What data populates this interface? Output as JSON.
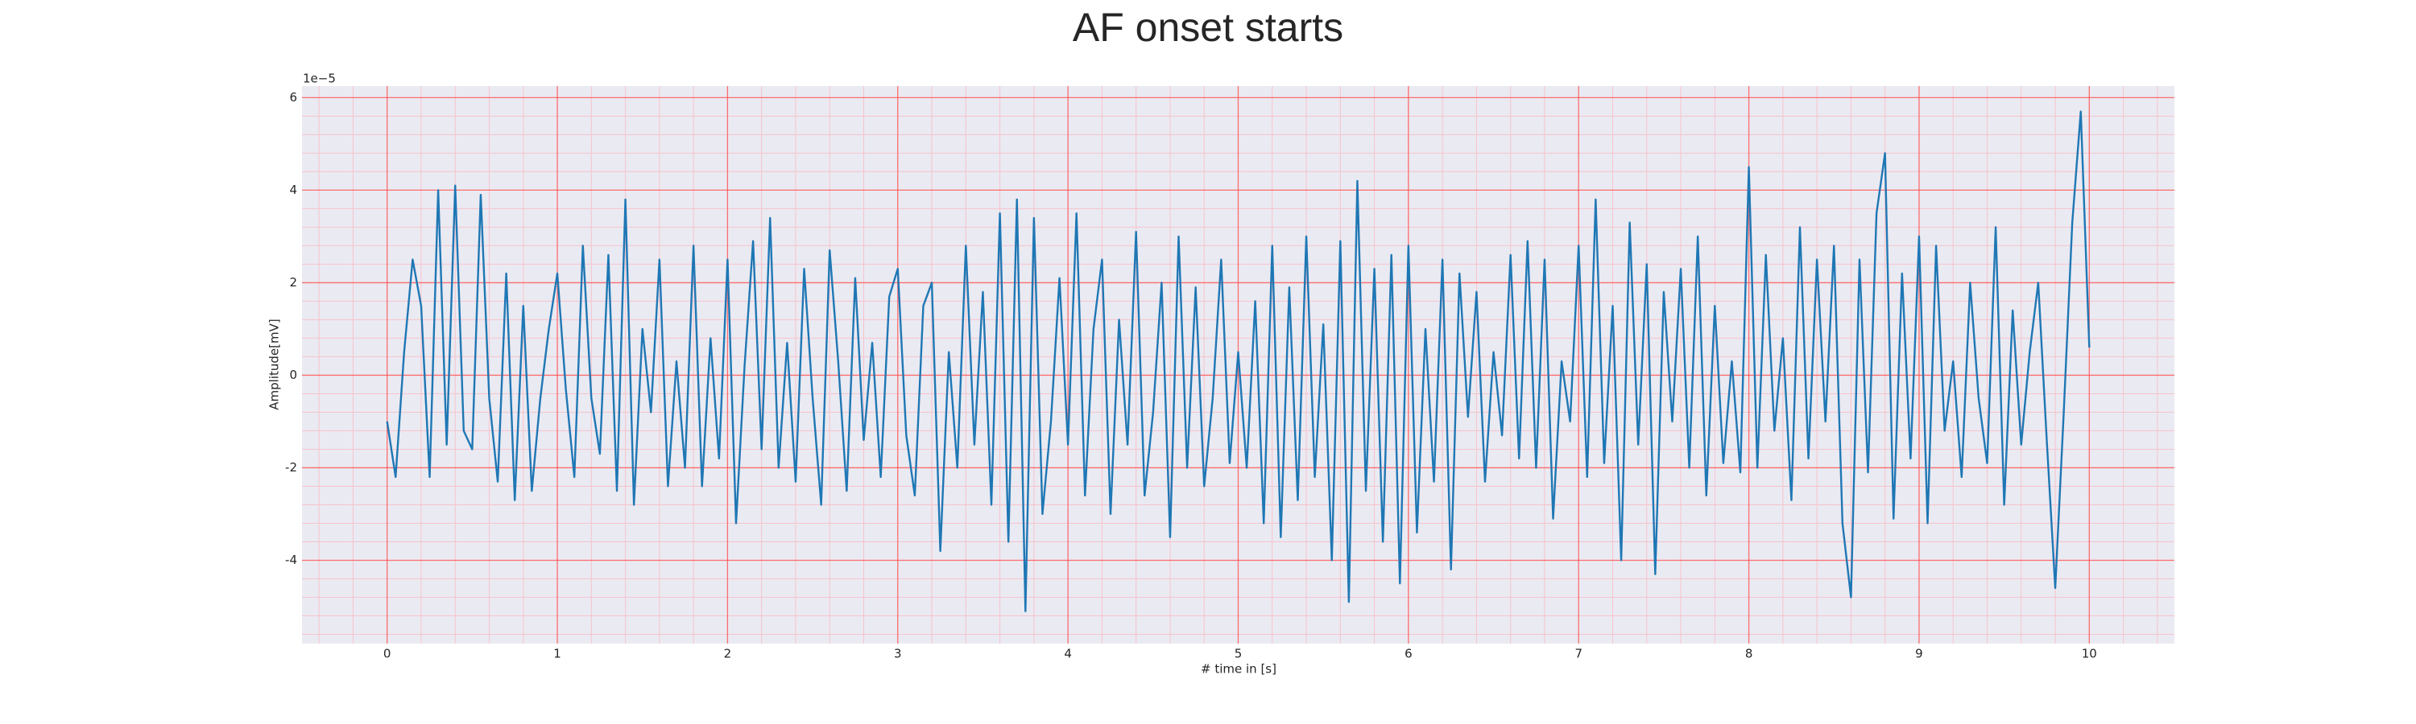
{
  "chart_data": {
    "type": "line",
    "title": "AF onset starts",
    "xlabel": "# time in [s]",
    "ylabel": "Amplitude[mV]",
    "y_offset_label": "1e−5",
    "xlim": [
      -0.5,
      10.5
    ],
    "ylim": [
      -5.8,
      6.25
    ],
    "xticks": [
      0,
      1,
      2,
      3,
      4,
      5,
      6,
      7,
      8,
      9,
      10
    ],
    "yticks": [
      -4,
      -2,
      0,
      2,
      4,
      6
    ],
    "xminorticks": [
      -0.4,
      -0.2,
      0.2,
      0.4,
      0.6,
      0.8,
      1.2,
      1.4,
      1.6,
      1.8,
      2.2,
      2.4,
      2.6,
      2.8,
      3.2,
      3.4,
      3.6,
      3.8,
      4.2,
      4.4,
      4.6,
      4.8,
      5.2,
      5.4,
      5.6,
      5.8,
      6.2,
      6.4,
      6.6,
      6.8,
      7.2,
      7.4,
      7.6,
      7.8,
      8.2,
      8.4,
      8.6,
      8.8,
      9.2,
      9.4,
      9.6,
      9.8,
      10.2,
      10.4
    ],
    "yminorticks": [
      -5.6,
      -5.2,
      -4.8,
      -4.4,
      -3.6,
      -3.2,
      -2.8,
      -2.4,
      -1.6,
      -1.2,
      -0.8,
      -0.4,
      0.4,
      0.8,
      1.2,
      1.6,
      2.4,
      2.8,
      3.2,
      3.6,
      4.4,
      4.8,
      5.2,
      5.6
    ],
    "grid": true,
    "grid_color": "#ff4d4d",
    "minor_grid_color": "#f7c3cc",
    "background": "#eaeaf2",
    "series": [
      {
        "color": "#1f77b4",
        "x": [
          0,
          0.05,
          0.1,
          0.15,
          0.2,
          0.25,
          0.3,
          0.35,
          0.4,
          0.45,
          0.5,
          0.55,
          0.6,
          0.65,
          0.7,
          0.75,
          0.8,
          0.85,
          0.9,
          0.95,
          1,
          1.05,
          1.1,
          1.15,
          1.2,
          1.25,
          1.3,
          1.35,
          1.4,
          1.45,
          1.5,
          1.55,
          1.6,
          1.65,
          1.7,
          1.75,
          1.8,
          1.85,
          1.9,
          1.95,
          2,
          2.05,
          2.1,
          2.15,
          2.2,
          2.25,
          2.3,
          2.35,
          2.4,
          2.45,
          2.5,
          2.55,
          2.6,
          2.65,
          2.7,
          2.75,
          2.8,
          2.85,
          2.9,
          2.95,
          3,
          3.05,
          3.1,
          3.15,
          3.2,
          3.25,
          3.3,
          3.35,
          3.4,
          3.45,
          3.5,
          3.55,
          3.6,
          3.65,
          3.7,
          3.75,
          3.8,
          3.85,
          3.9,
          3.95,
          4,
          4.05,
          4.1,
          4.15,
          4.2,
          4.25,
          4.3,
          4.35,
          4.4,
          4.45,
          4.5,
          4.55,
          4.6,
          4.65,
          4.7,
          4.75,
          4.8,
          4.85,
          4.9,
          4.95,
          5,
          5.05,
          5.1,
          5.15,
          5.2,
          5.25,
          5.3,
          5.35,
          5.4,
          5.45,
          5.5,
          5.55,
          5.6,
          5.65,
          5.7,
          5.75,
          5.8,
          5.85,
          5.9,
          5.95,
          6,
          6.05,
          6.1,
          6.15,
          6.2,
          6.25,
          6.3,
          6.35,
          6.4,
          6.45,
          6.5,
          6.55,
          6.6,
          6.65,
          6.7,
          6.75,
          6.8,
          6.85,
          6.9,
          6.95,
          7,
          7.05,
          7.1,
          7.15,
          7.2,
          7.25,
          7.3,
          7.35,
          7.4,
          7.45,
          7.5,
          7.55,
          7.6,
          7.65,
          7.7,
          7.75,
          7.8,
          7.85,
          7.9,
          7.95,
          8,
          8.05,
          8.1,
          8.15,
          8.2,
          8.25,
          8.3,
          8.35,
          8.4,
          8.45,
          8.5,
          8.55,
          8.6,
          8.65,
          8.7,
          8.75,
          8.8,
          8.85,
          8.9,
          8.95,
          9,
          9.05,
          9.1,
          9.15,
          9.2,
          9.25,
          9.3,
          9.35,
          9.4,
          9.45,
          9.5,
          9.55,
          9.6,
          9.65,
          9.7,
          9.75,
          9.8,
          9.85,
          9.9,
          9.95,
          10
        ],
        "values": [
          -1,
          -2.2,
          0.5,
          2.5,
          1.5,
          -2.2,
          4.0,
          -1.5,
          4.1,
          -1.2,
          -1.6,
          3.9,
          -0.5,
          -2.3,
          2.2,
          -2.7,
          1.5,
          -2.5,
          -0.5,
          1.0,
          2.2,
          -0.3,
          -2.2,
          2.8,
          -0.5,
          -1.7,
          2.6,
          -2.5,
          3.8,
          -2.8,
          1.0,
          -0.8,
          2.5,
          -2.4,
          0.3,
          -2.0,
          2.8,
          -2.4,
          0.8,
          -1.8,
          2.5,
          -3.2,
          0.2,
          2.9,
          -1.6,
          3.4,
          -2.0,
          0.7,
          -2.3,
          2.3,
          -0.5,
          -2.8,
          2.7,
          0.3,
          -2.5,
          2.1,
          -1.4,
          0.7,
          -2.2,
          1.7,
          2.3,
          -1.3,
          -2.6,
          1.5,
          2.0,
          -3.8,
          0.5,
          -2.0,
          2.8,
          -1.5,
          1.8,
          -2.8,
          3.5,
          -3.6,
          3.8,
          -5.1,
          3.4,
          -3.0,
          -1.0,
          2.1,
          -1.5,
          3.5,
          -2.6,
          1.0,
          2.5,
          -3.0,
          1.2,
          -1.5,
          3.1,
          -2.6,
          -0.8,
          2.0,
          -3.5,
          3.0,
          -2.0,
          1.9,
          -2.4,
          -0.5,
          2.5,
          -1.9,
          0.5,
          -2.0,
          1.6,
          -3.2,
          2.8,
          -3.5,
          1.9,
          -2.7,
          3.0,
          -2.2,
          1.1,
          -4.0,
          2.9,
          -4.9,
          4.2,
          -2.5,
          2.3,
          -3.6,
          2.6,
          -4.5,
          2.8,
          -3.4,
          1.0,
          -2.3,
          2.5,
          -4.2,
          2.2,
          -0.9,
          1.8,
          -2.3,
          0.5,
          -1.3,
          2.6,
          -1.8,
          2.9,
          -2.0,
          2.5,
          -3.1,
          0.3,
          -1.0,
          2.8,
          -2.2,
          3.8,
          -1.9,
          1.5,
          -4.0,
          3.3,
          -1.5,
          2.4,
          -4.3,
          1.8,
          -1.0,
          2.3,
          -2.0,
          3.0,
          -2.6,
          1.5,
          -1.9,
          0.3,
          -2.1,
          4.5,
          -2.0,
          2.6,
          -1.2,
          0.8,
          -2.7,
          3.2,
          -1.8,
          2.5,
          -1.0,
          2.8,
          -3.2,
          -4.8,
          2.5,
          -2.1,
          3.5,
          4.8,
          -3.1,
          2.2,
          -1.8,
          3.0,
          -3.2,
          2.8,
          -1.2,
          0.3,
          -2.2,
          2.0,
          -0.5,
          -1.9,
          3.2,
          -2.8,
          1.4,
          -1.5,
          0.5,
          2.0,
          -1.4,
          -4.6,
          -0.8,
          3.3,
          5.7,
          0.6
        ]
      }
    ]
  }
}
